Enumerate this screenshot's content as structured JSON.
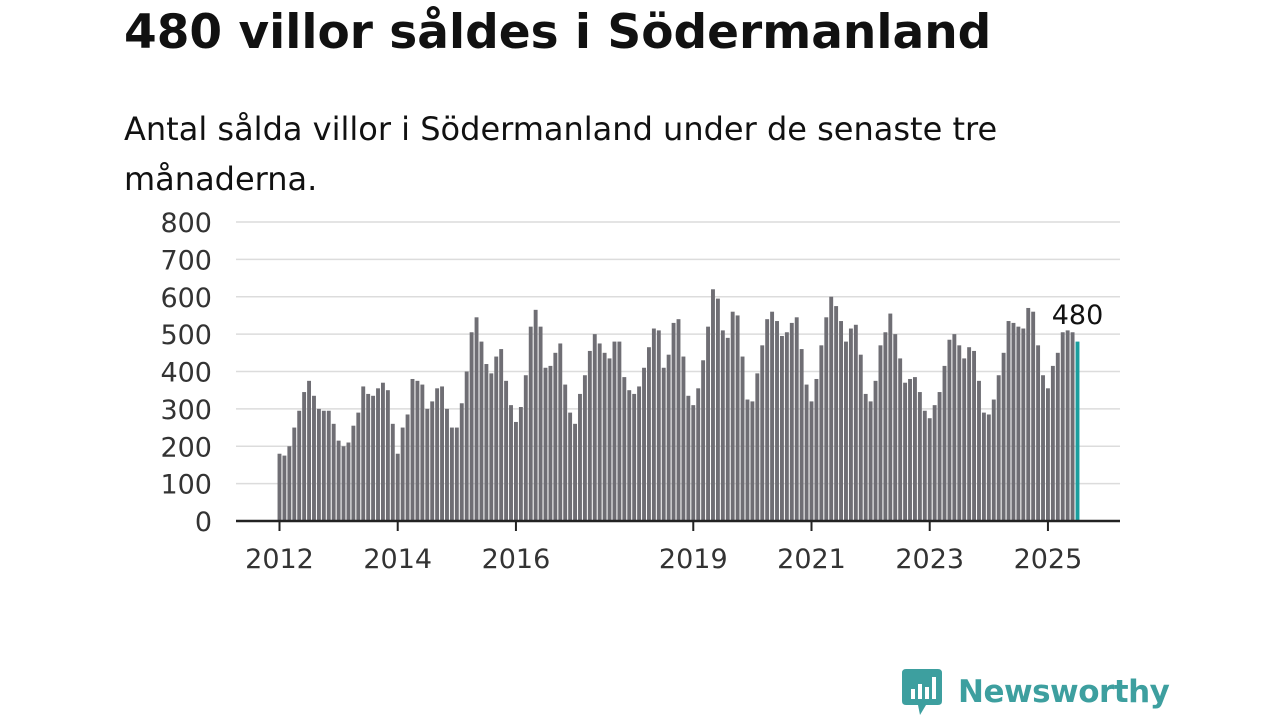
{
  "title": "480 villor såldes i Södermanland",
  "subtitle": "Antal sålda villor i Södermanland under de senaste tre månaderna.",
  "brand": {
    "name": "Newsworthy",
    "icon": "newsworthy-logo-icon"
  },
  "colors": {
    "bar": "#6f6e74",
    "highlight": "#1a9e9e",
    "grid": "#dcdcdc",
    "axis": "#222222",
    "brand": "#3d9f9f"
  },
  "chart_data": {
    "type": "bar",
    "title": "480 villor såldes i Södermanland",
    "subtitle": "Antal sålda villor i Södermanland under de senaste tre månaderna.",
    "xlabel": "",
    "ylabel": "",
    "ylim": [
      0,
      800
    ],
    "yticks": [
      0,
      100,
      200,
      300,
      400,
      500,
      600,
      700,
      800
    ],
    "grid": true,
    "x_tick_labels": [
      "2012",
      "2014",
      "2016",
      "2019",
      "2021",
      "2023",
      "2025"
    ],
    "highlight_label": "480",
    "series": [
      {
        "year": 2012,
        "values": [
          180,
          175,
          200,
          250,
          295,
          345,
          375,
          335,
          300,
          295,
          295,
          260
        ]
      },
      {
        "year": 2013,
        "values": [
          215,
          200,
          210,
          255,
          290,
          360,
          340,
          335,
          355,
          370,
          350,
          260
        ]
      },
      {
        "year": 2014,
        "values": [
          180,
          250,
          285,
          380,
          375,
          365,
          300,
          320,
          355,
          360,
          300,
          250
        ]
      },
      {
        "year": 2015,
        "values": [
          250,
          315,
          400,
          505,
          545,
          480,
          420,
          395,
          440,
          460,
          375,
          310
        ]
      },
      {
        "year": 2016,
        "values": [
          265,
          305,
          390,
          520,
          565,
          520,
          410,
          415,
          450,
          475,
          365,
          290
        ]
      },
      {
        "year": 2017,
        "values": [
          260,
          340,
          390,
          455,
          500,
          475,
          450,
          435,
          480,
          480,
          385,
          350
        ]
      },
      {
        "year": 2018,
        "values": [
          340,
          360,
          410,
          465,
          515,
          510,
          410,
          445,
          530,
          540,
          440,
          335
        ]
      },
      {
        "year": 2019,
        "values": [
          310,
          355,
          430,
          520,
          620,
          595,
          510,
          490,
          560,
          550,
          440,
          325
        ]
      },
      {
        "year": 2020,
        "values": [
          320,
          395,
          470,
          540,
          560,
          535,
          495,
          505,
          530,
          545,
          460,
          365
        ]
      },
      {
        "year": 2021,
        "values": [
          320,
          380,
          470,
          545,
          600,
          575,
          535,
          480,
          515,
          525,
          445,
          340
        ]
      },
      {
        "year": 2022,
        "values": [
          320,
          375,
          470,
          505,
          555,
          500,
          435,
          370,
          380,
          385,
          345,
          295
        ]
      },
      {
        "year": 2023,
        "values": [
          275,
          310,
          345,
          415,
          485,
          500,
          470,
          435,
          465,
          455,
          375,
          290
        ]
      },
      {
        "year": 2024,
        "values": [
          285,
          325,
          390,
          450,
          535,
          530,
          520,
          515,
          570,
          560,
          470,
          390
        ]
      },
      {
        "year": 2025,
        "values": [
          355,
          415,
          450,
          505,
          510,
          505,
          480
        ]
      }
    ]
  }
}
